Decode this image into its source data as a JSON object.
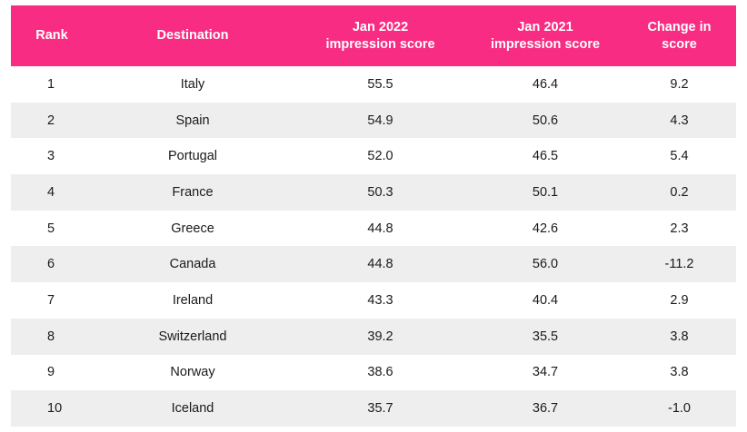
{
  "table": {
    "headers": {
      "rank": "Rank",
      "destination": "Destination",
      "jan2022_line1": "Jan 2022",
      "jan2022_line2": "impression score",
      "jan2021_line1": "Jan 2021",
      "jan2021_line2": "impression score",
      "change_line1": "Change in",
      "change_line2": "score"
    },
    "colors": {
      "header_bg": "#f72c82",
      "header_text": "#ffffff",
      "stripe": "#eeeeee"
    },
    "rows": [
      {
        "rank": "1",
        "destination": "Italy",
        "jan2022": "55.5",
        "jan2021": "46.4",
        "change": "9.2"
      },
      {
        "rank": "2",
        "destination": "Spain",
        "jan2022": "54.9",
        "jan2021": "50.6",
        "change": "4.3"
      },
      {
        "rank": "3",
        "destination": "Portugal",
        "jan2022": "52.0",
        "jan2021": "46.5",
        "change": "5.4"
      },
      {
        "rank": "4",
        "destination": "France",
        "jan2022": "50.3",
        "jan2021": "50.1",
        "change": "0.2"
      },
      {
        "rank": "5",
        "destination": "Greece",
        "jan2022": "44.8",
        "jan2021": "42.6",
        "change": "2.3"
      },
      {
        "rank": "6",
        "destination": "Canada",
        "jan2022": "44.8",
        "jan2021": "56.0",
        "change": "-11.2"
      },
      {
        "rank": "7",
        "destination": "Ireland",
        "jan2022": "43.3",
        "jan2021": "40.4",
        "change": "2.9"
      },
      {
        "rank": "8",
        "destination": "Switzerland",
        "jan2022": "39.2",
        "jan2021": "35.5",
        "change": "3.8"
      },
      {
        "rank": "9",
        "destination": "Norway",
        "jan2022": "38.6",
        "jan2021": "34.7",
        "change": "3.8"
      },
      {
        "rank": "10",
        "destination": "Iceland",
        "jan2022": "35.7",
        "jan2021": "36.7",
        "change": "-1.0"
      }
    ]
  }
}
